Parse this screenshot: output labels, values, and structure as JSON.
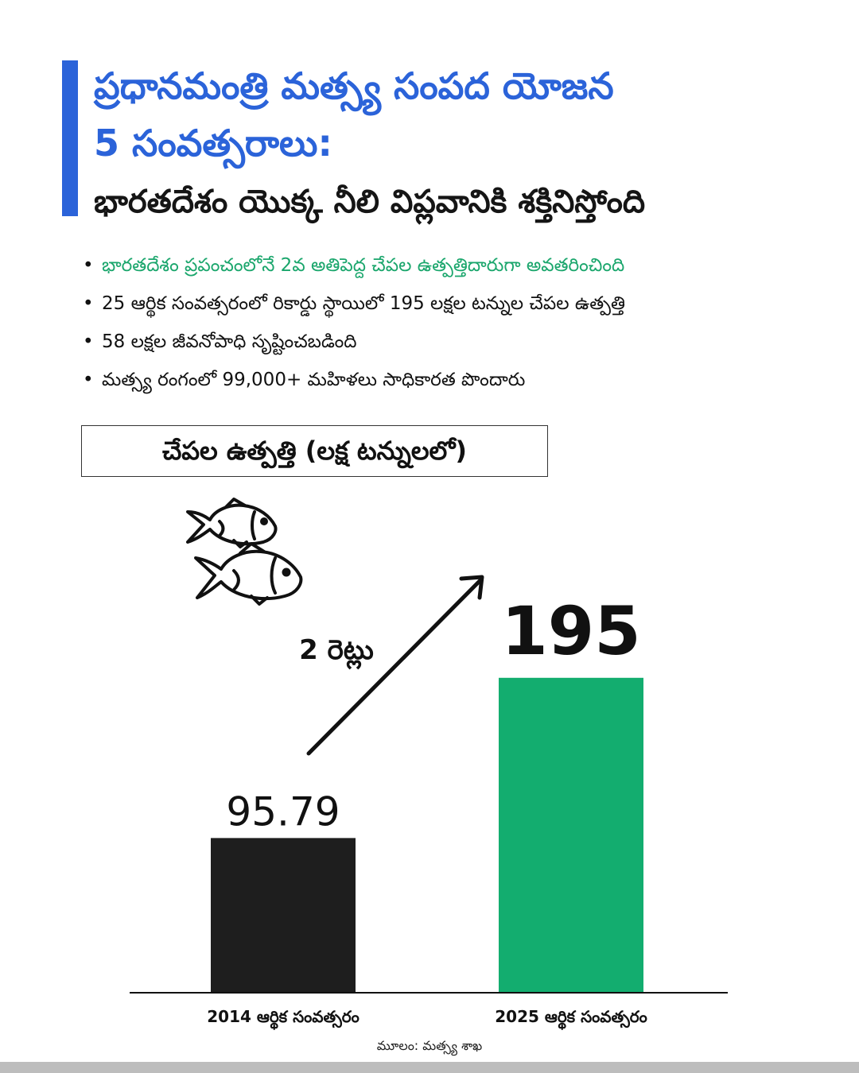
{
  "colors": {
    "accent": "#2b63d9",
    "highlight_green": "#1aa66c",
    "bar_2014": "#1e1e1e",
    "bar_2025": "#13ad6f",
    "text": "#111111"
  },
  "header": {
    "title_line1": "ప్రధానమంత్రి మత్స్య సంపద యోజన",
    "title_line2": "5 సంవత్సరాలు:",
    "subtitle": "భారతదేశం యొక్క నీలి విప్లవానికి శక్తినిస్తోంది"
  },
  "bullets": [
    "భారతదేశం ప్రపంచంలోనే 2వ అతిపెద్ద చేపల ఉత్పత్తిదారుగా అవతరించింది",
    "25 ఆర్థిక సంవత్సరంలో రికార్డు స్థాయిలో 195 లక్షల టన్నుల చేపల ఉత్పత్తి",
    "58 లక్షల జీవనోపాధి సృష్టించబడింది",
    "మత్స్య రంగంలో 99,000+ మహిళలు సాధికారత పొందారు"
  ],
  "icons": {
    "fish": "fish-icon",
    "arrow": "trend-arrow-icon"
  },
  "chart_data": {
    "type": "bar",
    "title": "చేపల ఉత్పత్తి (లక్ష టన్నులలో)",
    "categories": [
      "2014 ఆర్థిక సంవత్సరం",
      "2025 ఆర్థిక సంవత్సరం"
    ],
    "values": [
      95.79,
      195
    ],
    "value_labels": [
      "95.79",
      "195"
    ],
    "annotation": "2 రెట్లు",
    "ylim": [
      0,
      220
    ],
    "grid": false
  },
  "footer": {
    "source": "మూలం: మత్స్య శాఖ"
  }
}
